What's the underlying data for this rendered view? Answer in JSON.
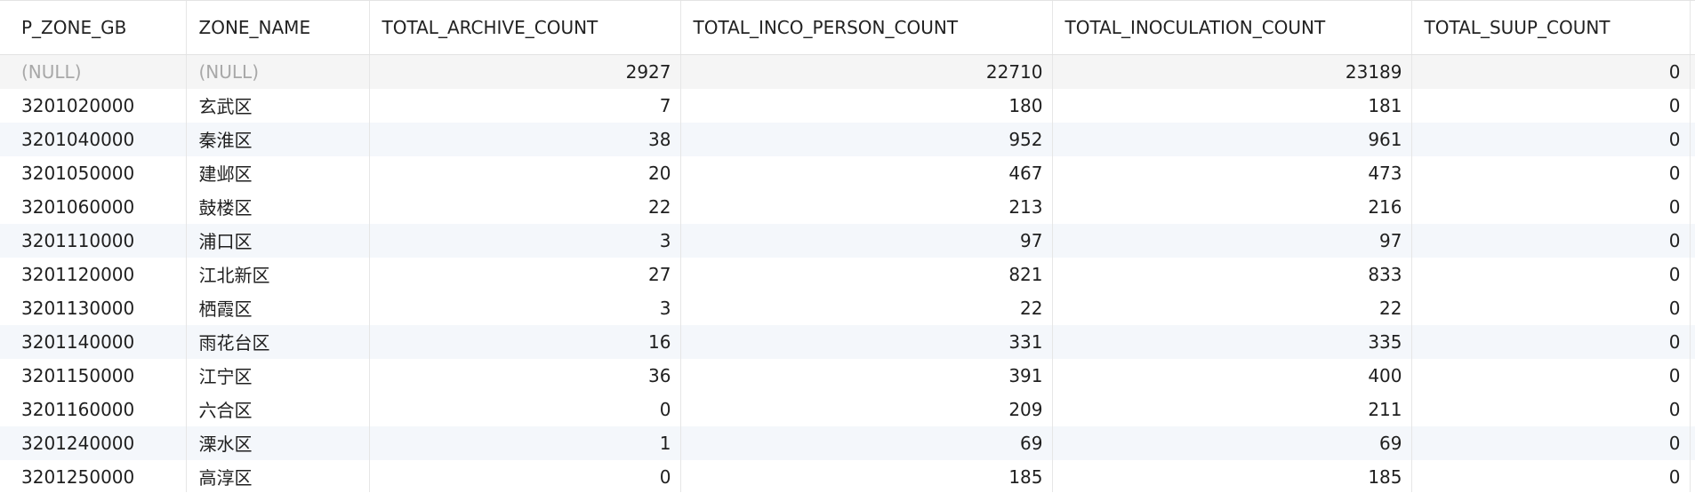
{
  "grid": {
    "columns": [
      "P_ZONE_GB",
      "ZONE_NAME",
      "TOTAL_ARCHIVE_COUNT",
      "TOTAL_INCO_PERSON_COUNT",
      "TOTAL_INOCULATION_COUNT",
      "TOTAL_SUUP_COUNT"
    ],
    "rows": [
      {
        "zone_gb": "(NULL)",
        "zone_name": "(NULL)",
        "archive": "2927",
        "inco_person": "22710",
        "inoculation": "23189",
        "suup": "0"
      },
      {
        "zone_gb": "3201020000",
        "zone_name": "玄武区",
        "archive": "7",
        "inco_person": "180",
        "inoculation": "181",
        "suup": "0"
      },
      {
        "zone_gb": "3201040000",
        "zone_name": "秦淮区",
        "archive": "38",
        "inco_person": "952",
        "inoculation": "961",
        "suup": "0"
      },
      {
        "zone_gb": "3201050000",
        "zone_name": "建邺区",
        "archive": "20",
        "inco_person": "467",
        "inoculation": "473",
        "suup": "0"
      },
      {
        "zone_gb": "3201060000",
        "zone_name": "鼓楼区",
        "archive": "22",
        "inco_person": "213",
        "inoculation": "216",
        "suup": "0"
      },
      {
        "zone_gb": "3201110000",
        "zone_name": "浦口区",
        "archive": "3",
        "inco_person": "97",
        "inoculation": "97",
        "suup": "0"
      },
      {
        "zone_gb": "3201120000",
        "zone_name": "江北新区",
        "archive": "27",
        "inco_person": "821",
        "inoculation": "833",
        "suup": "0"
      },
      {
        "zone_gb": "3201130000",
        "zone_name": "栖霞区",
        "archive": "3",
        "inco_person": "22",
        "inoculation": "22",
        "suup": "0"
      },
      {
        "zone_gb": "3201140000",
        "zone_name": "雨花台区",
        "archive": "16",
        "inco_person": "331",
        "inoculation": "335",
        "suup": "0"
      },
      {
        "zone_gb": "3201150000",
        "zone_name": "江宁区",
        "archive": "36",
        "inco_person": "391",
        "inoculation": "400",
        "suup": "0"
      },
      {
        "zone_gb": "3201160000",
        "zone_name": "六合区",
        "archive": "0",
        "inco_person": "209",
        "inoculation": "211",
        "suup": "0"
      },
      {
        "zone_gb": "3201240000",
        "zone_name": "溧水区",
        "archive": "1",
        "inco_person": "69",
        "inoculation": "69",
        "suup": "0"
      },
      {
        "zone_gb": "3201250000",
        "zone_name": "高淳区",
        "archive": "0",
        "inco_person": "185",
        "inoculation": "185",
        "suup": "0"
      }
    ]
  },
  "colors": {
    "alt_row": "#f4f7fb",
    "highlight_row": "#f5f5f5",
    "null_text": "#a8a8a8"
  }
}
